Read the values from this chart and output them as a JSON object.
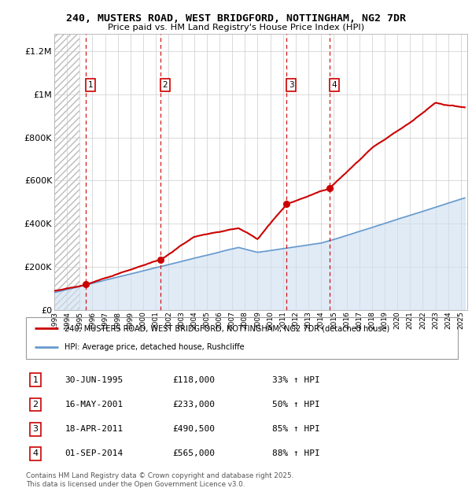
{
  "title1": "240, MUSTERS ROAD, WEST BRIDGFORD, NOTTINGHAM, NG2 7DR",
  "title2": "Price paid vs. HM Land Registry's House Price Index (HPI)",
  "sales": [
    {
      "num": 1,
      "date": "30-JUN-1995",
      "year": 1995.5,
      "price": 118000,
      "hpi_pct": "33% ↑ HPI"
    },
    {
      "num": 2,
      "date": "16-MAY-2001",
      "year": 2001.37,
      "price": 233000,
      "hpi_pct": "50% ↑ HPI"
    },
    {
      "num": 3,
      "date": "18-APR-2011",
      "year": 2011.29,
      "price": 490500,
      "hpi_pct": "85% ↑ HPI"
    },
    {
      "num": 4,
      "date": "01-SEP-2014",
      "year": 2014.67,
      "price": 565000,
      "hpi_pct": "88% ↑ HPI"
    }
  ],
  "xmin": 1993,
  "xmax": 2025.5,
  "ymin": 0,
  "ymax": 1280000,
  "hatch_end": 1995.0,
  "legend_line1": "240, MUSTERS ROAD, WEST BRIDGFORD, NOTTINGHAM, NG2 7DR (detached house)",
  "legend_line2": "HPI: Average price, detached house, Rushcliffe",
  "footer": "Contains HM Land Registry data © Crown copyright and database right 2025.\nThis data is licensed under the Open Government Licence v3.0.",
  "red_color": "#cc0000",
  "blue_color": "#6699cc",
  "light_blue_fill": "#ccdff0",
  "hatch_color": "#aaaaaa",
  "hpi_anchors": [
    [
      1993.0,
      80000
    ],
    [
      2007.5,
      290000
    ],
    [
      2009.0,
      267000
    ],
    [
      2014.0,
      310000
    ],
    [
      2016.0,
      345000
    ],
    [
      2025.3,
      520000
    ]
  ],
  "red_anchors": [
    [
      1993.0,
      88000
    ],
    [
      1995.5,
      118000
    ],
    [
      2001.37,
      233000
    ],
    [
      2004.0,
      340000
    ],
    [
      2007.5,
      380000
    ],
    [
      2009.0,
      330000
    ],
    [
      2011.29,
      490500
    ],
    [
      2014.67,
      565000
    ],
    [
      2018.0,
      750000
    ],
    [
      2021.0,
      870000
    ],
    [
      2023.0,
      960000
    ],
    [
      2025.3,
      940000
    ]
  ]
}
